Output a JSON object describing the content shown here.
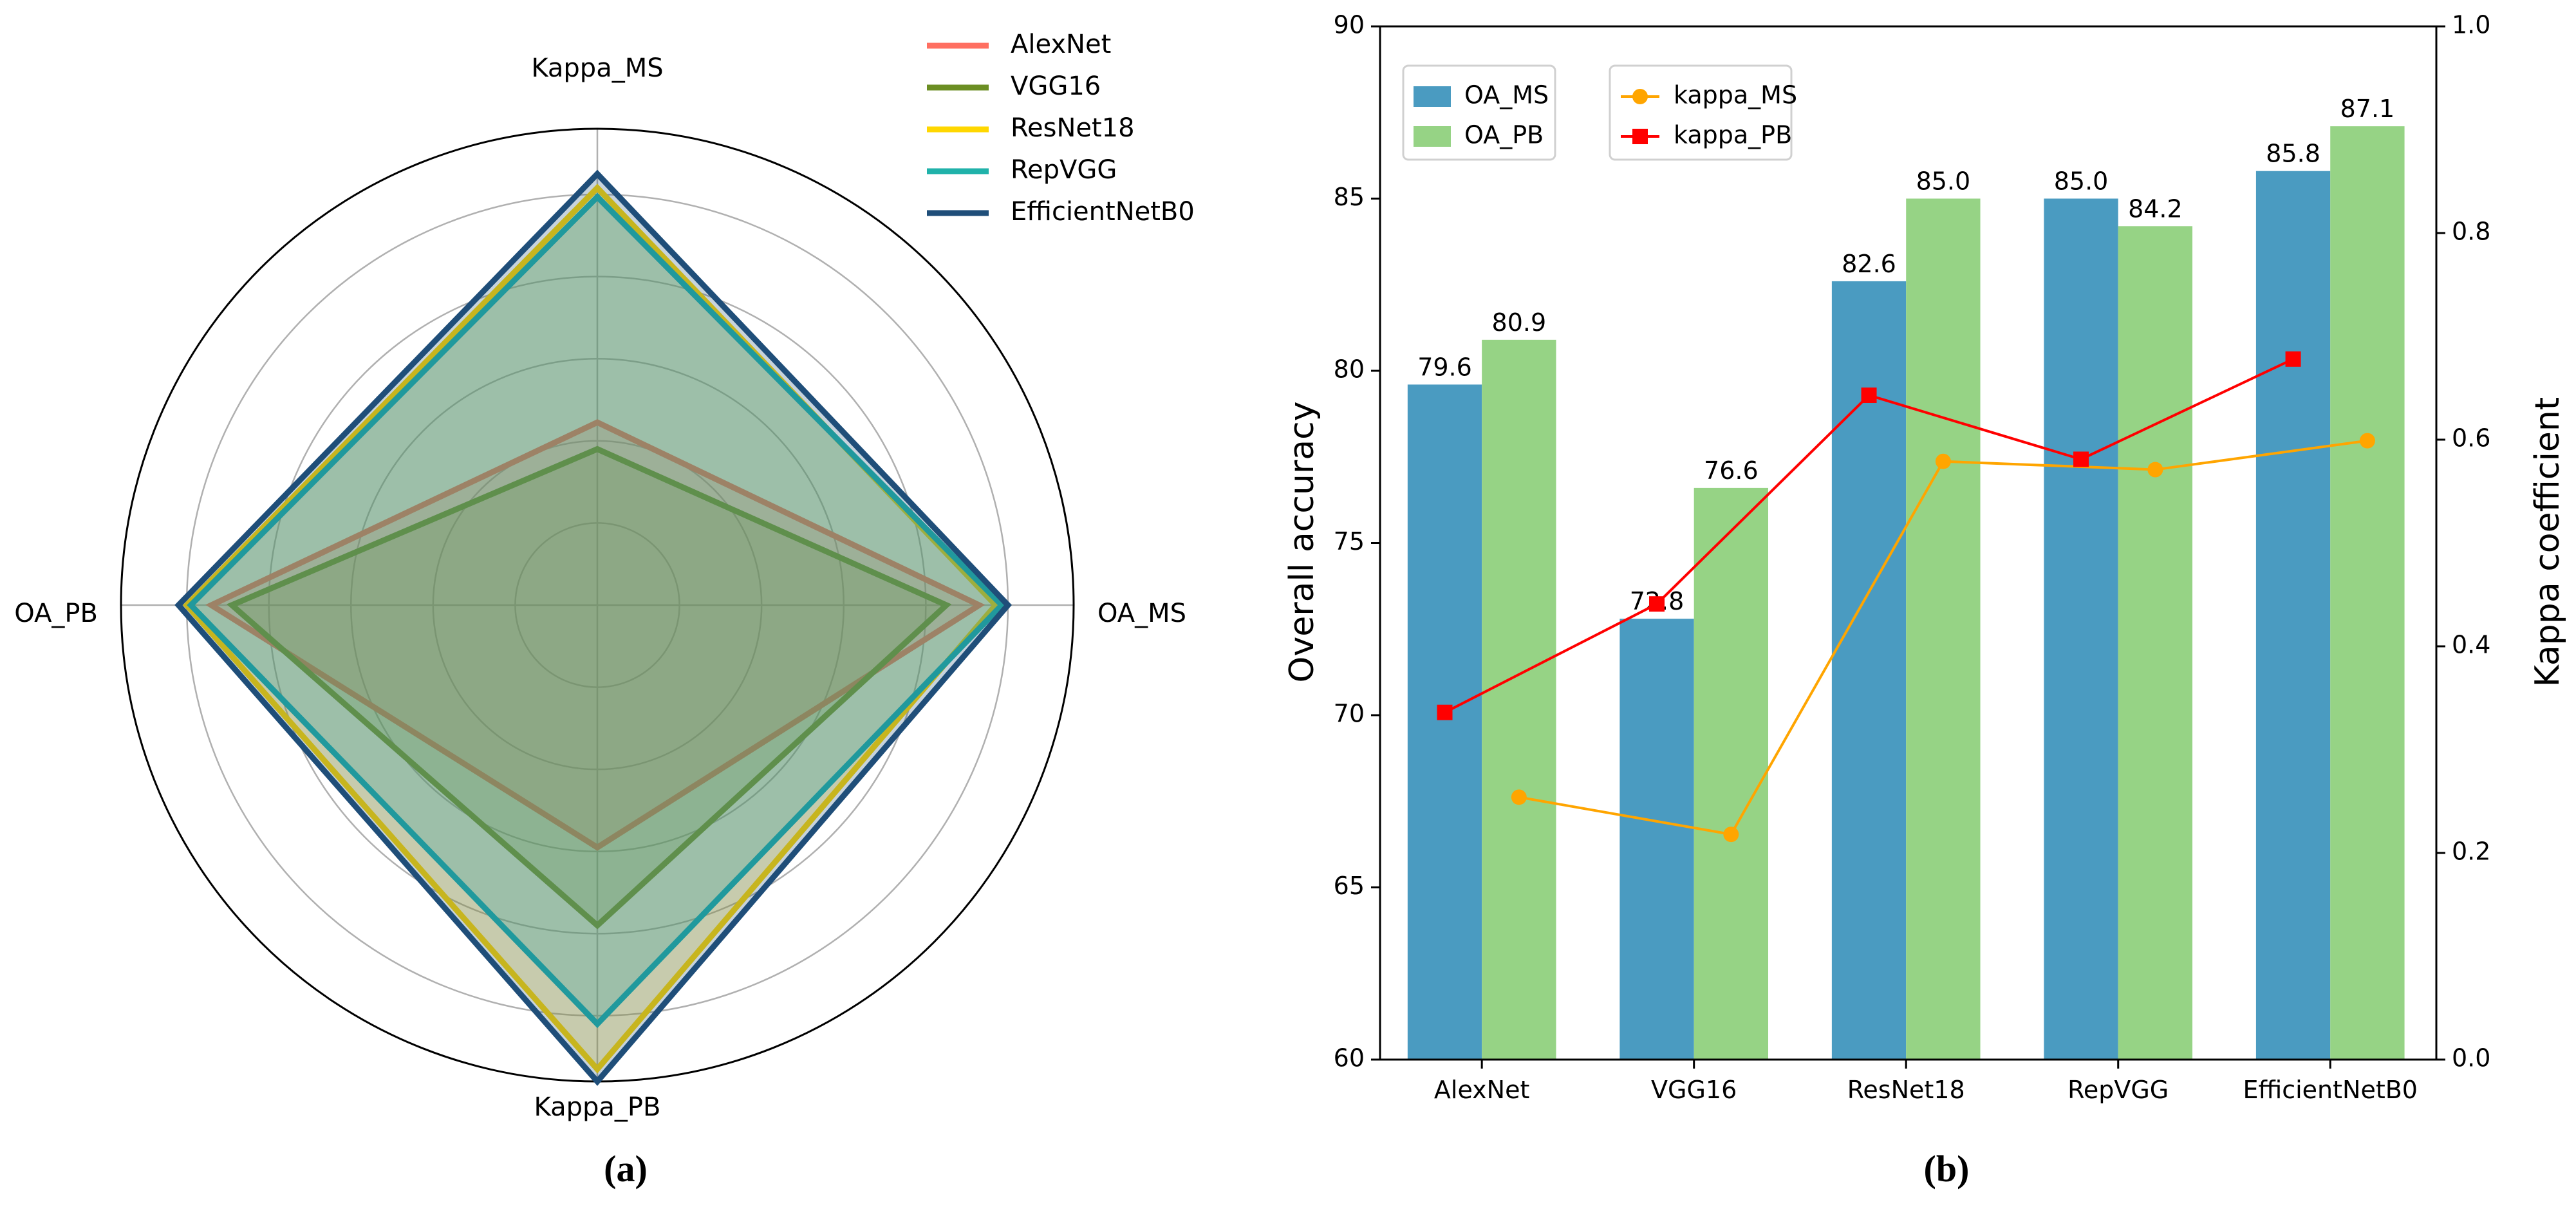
{
  "chart_data": [
    {
      "type": "radar",
      "panel_label": "(a)",
      "axes": [
        "OA_MS",
        "Kappa_MS",
        "OA_PB",
        "Kappa_PB"
      ],
      "rlim": [
        0,
        1.16
      ],
      "rings": [
        0.2,
        0.4,
        0.6,
        0.8,
        1.0
      ],
      "grid": true,
      "legend_position": "top-right",
      "series": [
        {
          "name": "AlexNet",
          "color": "#ff6f61",
          "values": [
            0.93,
            0.445,
            0.94,
            0.59
          ]
        },
        {
          "name": "VGG16",
          "color": "#6b8e23",
          "values": [
            0.85,
            0.38,
            0.89,
            0.78
          ]
        },
        {
          "name": "ResNet18",
          "color": "#ffd700",
          "values": [
            0.97,
            1.016,
            1.0,
            1.13
          ]
        },
        {
          "name": "RepVGG",
          "color": "#20b2aa",
          "values": [
            0.985,
            0.994,
            0.99,
            1.02
          ]
        },
        {
          "name": "EfficientNetB0",
          "color": "#1f4e79",
          "values": [
            1.0,
            1.05,
            1.02,
            1.16
          ]
        }
      ]
    },
    {
      "type": "bar+line",
      "panel_label": "(b)",
      "categories": [
        "AlexNet",
        "VGG16",
        "ResNet18",
        "RepVGG",
        "EfficientNetB0"
      ],
      "ylabel": "Overall accuracy",
      "ylim": [
        60,
        90
      ],
      "yticks": [
        "60",
        "65",
        "70",
        "75",
        "80",
        "85",
        "90"
      ],
      "y2label": "Kappa coefficient",
      "y2lim": [
        0,
        1.0
      ],
      "y2ticks": [
        "0.0",
        "0.2",
        "0.4",
        "0.6",
        "0.8",
        "1.0"
      ],
      "bar_series": [
        {
          "name": "OA_MS",
          "color": "#4a9bc1",
          "values": [
            79.6,
            72.8,
            82.6,
            85.0,
            85.8
          ],
          "labels": [
            "79.6",
            "72.8",
            "82.6",
            "85.0",
            "85.8"
          ]
        },
        {
          "name": "OA_PB",
          "color": "#96d385",
          "values": [
            80.9,
            76.6,
            85.0,
            84.2,
            87.1
          ],
          "labels": [
            "80.9",
            "76.6",
            "85.0",
            "84.2",
            "87.1"
          ]
        }
      ],
      "line_series": [
        {
          "name": "kappa_MS",
          "color": "#ffa500",
          "marker": "circle",
          "values": [
            0.254,
            0.218,
            0.579,
            0.571,
            0.599
          ]
        },
        {
          "name": "kappa_PB",
          "color": "#ff0000",
          "marker": "square",
          "values": [
            0.336,
            0.441,
            0.643,
            0.581,
            0.678
          ]
        }
      ],
      "legend_position": "top-left"
    }
  ]
}
